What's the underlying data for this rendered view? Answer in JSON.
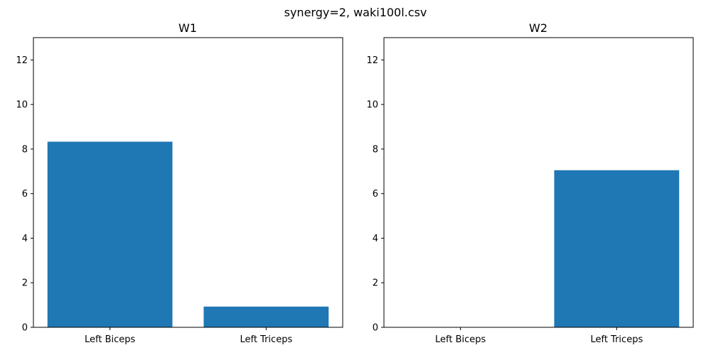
{
  "figure": {
    "suptitle": "synergy=2, waki100l.csv"
  },
  "chart_data": [
    {
      "type": "bar",
      "title": "W1",
      "categories": [
        "Left Biceps",
        "Left Triceps"
      ],
      "values": [
        8.33,
        0.93
      ],
      "xlabel": "",
      "ylabel": "",
      "ylim": [
        0,
        13
      ],
      "yticks": [
        0,
        2,
        4,
        6,
        8,
        10,
        12
      ],
      "bar_color": "#1f77b4",
      "grid": false
    },
    {
      "type": "bar",
      "title": "W2",
      "categories": [
        "Left Biceps",
        "Left Triceps"
      ],
      "values": [
        0,
        7.05
      ],
      "xlabel": "",
      "ylabel": "",
      "ylim": [
        0,
        13
      ],
      "yticks": [
        0,
        2,
        4,
        6,
        8,
        10,
        12
      ],
      "bar_color": "#1f77b4",
      "grid": false
    }
  ]
}
